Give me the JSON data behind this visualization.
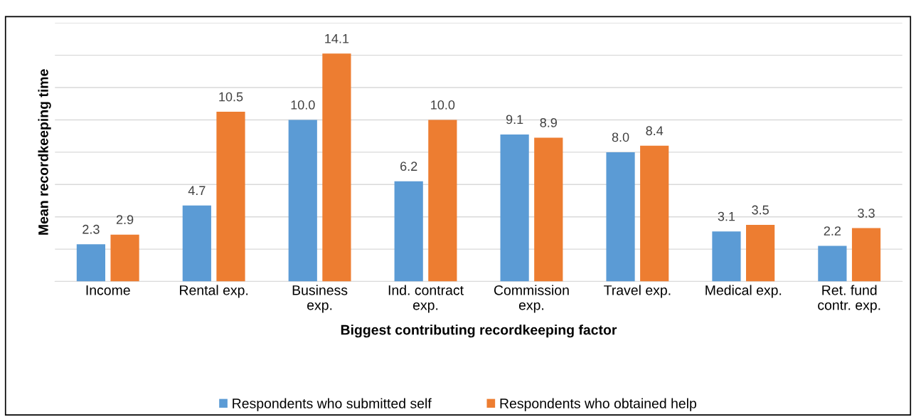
{
  "chart_data": {
    "type": "bar",
    "xlabel": "Biggest contributing recordkeeping factor",
    "ylabel": "Mean recordkeeping time",
    "categories": [
      "Income",
      "Rental exp.",
      "Business\nexp.",
      "Ind. contract\nexp.",
      "Commission\nexp.",
      "Travel exp.",
      "Medical exp.",
      "Ret. fund\ncontr. exp."
    ],
    "series": [
      {
        "name": "Respondents who submitted self",
        "color": "#5b9bd5",
        "values": [
          2.3,
          4.7,
          10.0,
          6.2,
          9.1,
          8.0,
          3.1,
          2.2
        ],
        "value_labels": [
          "2.3",
          "4.7",
          "10.0",
          "6.2",
          "9.1",
          "8.0",
          "3.1",
          "2.2"
        ]
      },
      {
        "name": "Respondents who obtained help",
        "color": "#ed7d31",
        "values": [
          2.9,
          10.5,
          14.1,
          10.0,
          8.9,
          8.4,
          3.5,
          3.3
        ],
        "value_labels": [
          "2.9",
          "10.5",
          "14.1",
          "10.0",
          "8.9",
          "8.4",
          "3.5",
          "3.3"
        ]
      }
    ],
    "ylim": [
      0,
      16
    ],
    "yticks": [
      {
        "value": 0,
        "label": null
      },
      {
        "value": 2,
        "label": null
      },
      {
        "value": 4,
        "label": null
      },
      {
        "value": 6,
        "label": null
      },
      {
        "value": 8,
        "label": null
      },
      {
        "value": 10,
        "label": null
      },
      {
        "value": 12,
        "label": null
      },
      {
        "value": 14,
        "label": null
      },
      {
        "value": 16,
        "label": null
      }
    ],
    "tick_labels": "x",
    "grid": "y",
    "legend": "bottom"
  }
}
